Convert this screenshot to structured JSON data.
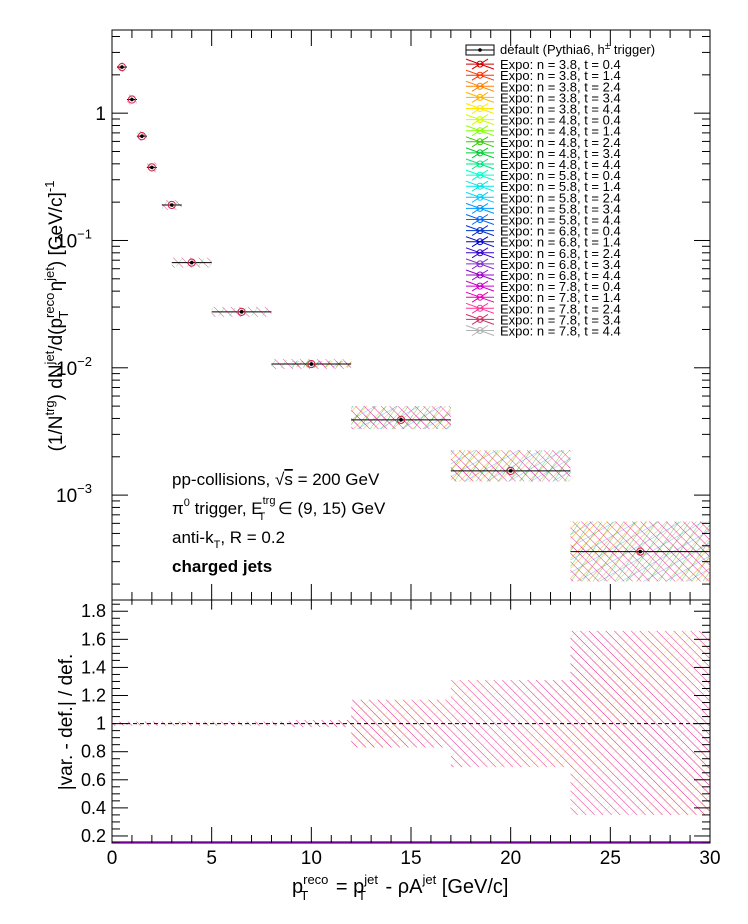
{
  "chart_data": [
    {
      "type": "scatter",
      "panel": "spectrum",
      "ylabel_parts": {
        "a": "(1/N",
        "b": "trg",
        "c": ") dN",
        "d": "jet",
        "e": "/d(p",
        "f": "reco",
        "g": "T",
        "h": " η",
        "i": "jet",
        "j": ") [GeV/c]",
        "k": "-1"
      },
      "y_scale": "log",
      "ylim": [
        0.00015,
        4.5
      ],
      "xlim": [
        0,
        30
      ],
      "y_ticks": [
        {
          "value": 1,
          "label": "1"
        },
        {
          "value": 0.1,
          "base": "10",
          "exp": "−1"
        },
        {
          "value": 0.01,
          "base": "10",
          "exp": "−2"
        },
        {
          "value": 0.001,
          "base": "10",
          "exp": "−3"
        }
      ],
      "default_series": {
        "name_parts": {
          "a": "default (Pythia6, h",
          "b": "±",
          "c": " trigger)"
        },
        "points": [
          {
            "x": 0.5,
            "y": 2.3,
            "xerr": 0.25
          },
          {
            "x": 1.0,
            "y": 1.28,
            "xerr": 0.25
          },
          {
            "x": 1.5,
            "y": 0.66,
            "xerr": 0.25
          },
          {
            "x": 2.0,
            "y": 0.375,
            "xerr": 0.25
          },
          {
            "x": 3.0,
            "y": 0.19,
            "xerr": 0.5
          },
          {
            "x": 4.0,
            "y": 0.067,
            "xerr": 1.0
          },
          {
            "x": 6.5,
            "y": 0.0275,
            "xerr": 1.5
          },
          {
            "x": 10.0,
            "y": 0.0107,
            "xerr": 2.0
          },
          {
            "x": 14.5,
            "y": 0.0039,
            "xerr": 2.5
          },
          {
            "x": 20.0,
            "y": 0.00155,
            "xerr": 3.0
          },
          {
            "x": 26.5,
            "y": 0.00036,
            "xerr": 3.5
          }
        ],
        "syst_bands": [
          {
            "x0": 9.0,
            "x1": 12.0,
            "lo": 0.0101,
            "hi": 0.0113
          },
          {
            "x0": 12.0,
            "x1": 17.0,
            "lo": 0.0033,
            "hi": 0.005
          },
          {
            "x0": 17.0,
            "x1": 23.0,
            "lo": 0.00128,
            "hi": 0.00225
          },
          {
            "x0": 23.0,
            "x1": 30.0,
            "lo": 0.00021,
            "hi": 0.00062
          }
        ]
      },
      "variations": [
        {
          "name": "Expo: n = 3.8, t = 0.4",
          "color": "#cc0000"
        },
        {
          "name": "Expo: n = 3.8, t = 1.4",
          "color": "#ff3300"
        },
        {
          "name": "Expo: n = 3.8, t = 2.4",
          "color": "#ff8000"
        },
        {
          "name": "Expo: n = 3.8, t = 3.4",
          "color": "#ffb300"
        },
        {
          "name": "Expo: n = 3.8, t = 4.4",
          "color": "#ffe600"
        },
        {
          "name": "Expo: n = 4.8, t = 0.4",
          "color": "#ccff00"
        },
        {
          "name": "Expo: n = 4.8, t = 1.4",
          "color": "#80ff00"
        },
        {
          "name": "Expo: n = 4.8, t = 2.4",
          "color": "#33cc00"
        },
        {
          "name": "Expo: n = 4.8, t = 3.4",
          "color": "#00cc33"
        },
        {
          "name": "Expo: n = 4.8, t = 4.4",
          "color": "#00e680"
        },
        {
          "name": "Expo: n = 5.8, t = 0.4",
          "color": "#00ffcc"
        },
        {
          "name": "Expo: n = 5.8, t = 1.4",
          "color": "#00e6e6"
        },
        {
          "name": "Expo: n = 5.8, t = 2.4",
          "color": "#00ccff"
        },
        {
          "name": "Expo: n = 5.8, t = 3.4",
          "color": "#0099ff"
        },
        {
          "name": "Expo: n = 5.8, t = 4.4",
          "color": "#0066ff"
        },
        {
          "name": "Expo: n = 6.8, t = 0.4",
          "color": "#0033cc"
        },
        {
          "name": "Expo: n = 6.8, t = 1.4",
          "color": "#0000cc"
        },
        {
          "name": "Expo: n = 6.8, t = 2.4",
          "color": "#3300cc"
        },
        {
          "name": "Expo: n = 6.8, t = 3.4",
          "color": "#8033cc"
        },
        {
          "name": "Expo: n = 6.8, t = 4.4",
          "color": "#9900cc"
        },
        {
          "name": "Expo: n = 7.8, t = 0.4",
          "color": "#cc00cc"
        },
        {
          "name": "Expo: n = 7.8, t = 1.4",
          "color": "#e600b3"
        },
        {
          "name": "Expo: n = 7.8, t = 2.4",
          "color": "#ff3399"
        },
        {
          "name": "Expo: n = 7.8, t = 3.4",
          "color": "#cc3366"
        },
        {
          "name": "Expo: n = 7.8, t = 4.4",
          "color": "#b3b3b3"
        }
      ],
      "annotations": {
        "collisions_a": "pp-collisions, ",
        "collisions_sqrt": "√",
        "collisions_s": "s",
        "collisions_b": " = 200 GeV",
        "trigger_a": "π",
        "trigger_b": "0",
        "trigger_c": " trigger, E",
        "trigger_d": "trg",
        "trigger_e": "T",
        "trigger_f": " ∈ (9, 15) GeV",
        "algo_a": "anti-k",
        "algo_b": "T",
        "algo_c": ", R = 0.2",
        "jets": "charged jets"
      },
      "legend_position": "top-right"
    },
    {
      "type": "area",
      "panel": "ratio",
      "ylabel": "|var. - def.| / def.",
      "ylim": [
        0.15,
        1.88
      ],
      "y_ticks": [
        0.2,
        0.4,
        0.6,
        0.8,
        1,
        1.2,
        1.4,
        1.6,
        1.8
      ],
      "y_tick_labels": [
        "0.2",
        "0.4",
        "0.6",
        "0.8",
        "1",
        "1.2",
        "1.4",
        "1.6",
        "1.8"
      ],
      "reference_line": 1,
      "bands": [
        {
          "x0": 0.0,
          "x1": 9.0,
          "lo": 0.985,
          "hi": 1.015
        },
        {
          "x0": 9.0,
          "x1": 12.0,
          "lo": 0.975,
          "hi": 1.025
        },
        {
          "x0": 12.0,
          "x1": 17.0,
          "lo": 0.83,
          "hi": 1.17
        },
        {
          "x0": 17.0,
          "x1": 23.0,
          "lo": 0.69,
          "hi": 1.31
        },
        {
          "x0": 23.0,
          "x1": 30.0,
          "lo": 0.35,
          "hi": 1.66
        }
      ],
      "xlabel_parts": {
        "a": "p",
        "b": "reco",
        "c": "T",
        "d": " = p",
        "e": "jet",
        "f": "T",
        "g": " - ρA",
        "h": "jet",
        "i": " [GeV/c]"
      },
      "x_ticks": [
        0,
        5,
        10,
        15,
        20,
        25,
        30
      ],
      "x_tick_labels": [
        "0",
        "5",
        "10",
        "15",
        "20",
        "25",
        "30"
      ]
    }
  ]
}
